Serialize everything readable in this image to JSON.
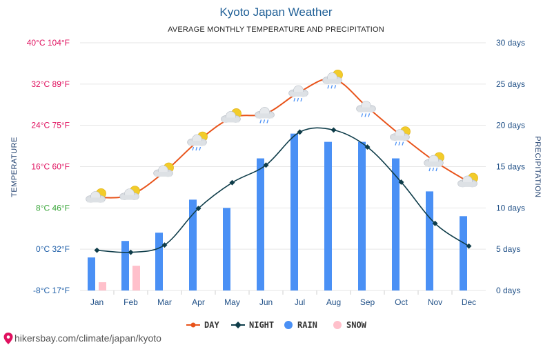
{
  "chart_data": {
    "type": "bar",
    "title": "Kyoto Japan Weather",
    "subtitle": "AVERAGE MONTHLY TEMPERATURE AND PRECIPITATION",
    "categories": [
      "Jan",
      "Feb",
      "Mar",
      "Apr",
      "May",
      "Jun",
      "Jul",
      "Aug",
      "Sep",
      "Oct",
      "Nov",
      "Dec"
    ],
    "left_axis": {
      "label": "TEMPERATURE",
      "unit": "°C",
      "range": [
        -8,
        40
      ],
      "ticks": [
        {
          "value": -8,
          "label": "-8°C 17°F",
          "color": "#1f5fa8"
        },
        {
          "value": 0,
          "label": "0°C 32°F",
          "color": "#1f5fa8"
        },
        {
          "value": 8,
          "label": "8°C 46°F",
          "color": "#3aa63a"
        },
        {
          "value": 16,
          "label": "16°C 60°F",
          "color": "#e0115f"
        },
        {
          "value": 24,
          "label": "24°C 75°F",
          "color": "#e0115f"
        },
        {
          "value": 32,
          "label": "32°C 89°F",
          "color": "#e0115f"
        },
        {
          "value": 40,
          "label": "40°C 104°F",
          "color": "#e0115f"
        }
      ]
    },
    "right_axis": {
      "label": "PRECIPITATION",
      "unit": "days",
      "range": [
        0,
        30
      ],
      "ticks": [
        {
          "value": 0,
          "label": "0 days"
        },
        {
          "value": 5,
          "label": "5 days"
        },
        {
          "value": 10,
          "label": "10 days"
        },
        {
          "value": 15,
          "label": "15 days"
        },
        {
          "value": 20,
          "label": "20 days"
        },
        {
          "value": 25,
          "label": "25 days"
        },
        {
          "value": 30,
          "label": "30 days"
        }
      ]
    },
    "grid": true,
    "legend_position": "bottom-center",
    "series": [
      {
        "name": "DAY",
        "kind": "line",
        "axis": "left",
        "color": "#e8531a",
        "values": [
          10,
          10.5,
          15,
          21,
          25.5,
          26.3,
          30.5,
          33,
          27.5,
          22,
          17,
          13
        ]
      },
      {
        "name": "NIGHT",
        "kind": "line",
        "axis": "left",
        "color": "#0f3d4a",
        "values": [
          -0.2,
          -0.6,
          0.8,
          7.9,
          12.9,
          16.3,
          22.7,
          23.1,
          19.8,
          13,
          5,
          0.6
        ]
      },
      {
        "name": "RAIN",
        "kind": "bar",
        "axis": "right",
        "color": "#4a90f5",
        "values": [
          4,
          6,
          7,
          11,
          10,
          16,
          19,
          18,
          18,
          16,
          12,
          9
        ]
      },
      {
        "name": "SNOW",
        "kind": "bar",
        "axis": "right",
        "color": "#ffc0cb",
        "values": [
          1,
          3,
          0,
          0,
          0,
          0,
          0,
          0,
          0,
          0,
          0,
          0
        ]
      }
    ],
    "weather_icons": [
      "partly-sunny-icon",
      "partly-sunny-icon",
      "partly-sunny-icon",
      "partly-sunny-rain-icon",
      "partly-sunny-icon",
      "cloud-rain-icon",
      "cloud-rain-icon",
      "partly-sunny-rain-icon",
      "cloud-rain-icon",
      "partly-sunny-rain-icon",
      "partly-sunny-rain-icon",
      "partly-sunny-icon"
    ]
  },
  "footer": {
    "text": "hikersbay.com/climate/japan/kyoto",
    "icon": "location-pin-icon"
  },
  "colors": {
    "grid": "#e6e6e6",
    "title": "#1f5f96",
    "right_tick": "#1f4f86",
    "pin": "#e0115f"
  }
}
